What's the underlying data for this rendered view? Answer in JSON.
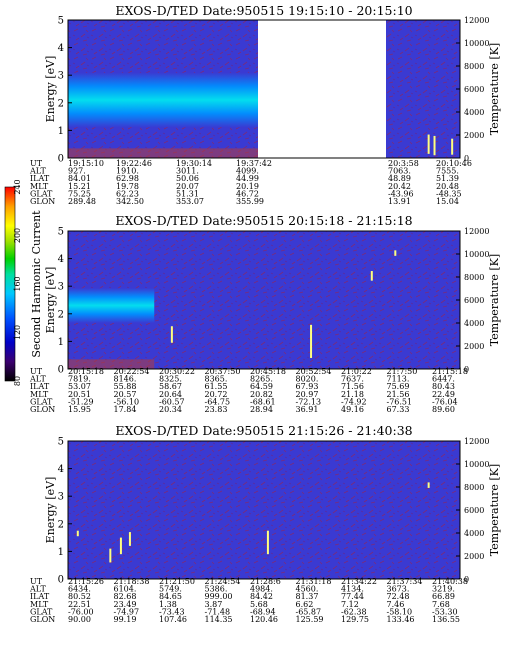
{
  "chart_data": [
    {
      "type": "heatmap",
      "title": "EXOS-D/TED   Date:950515   19:15:10 - 20:15:10",
      "ylabel": "Energy [eV]",
      "ylabel_right": "Temperature [K]",
      "ylim": [
        0,
        5
      ],
      "yticks": [
        "0",
        "1",
        "2",
        "3",
        "4",
        "5"
      ],
      "ylim_right": [
        0,
        12000
      ],
      "yticks_right": [
        "0",
        "2000",
        "4000",
        "6000",
        "8000",
        "10000",
        "12000"
      ],
      "data_gap": true,
      "band": {
        "x_start": 0.0,
        "x_end": 0.5,
        "center_eV": 2.1,
        "halfwidth_eV": 0.55
      },
      "spikes": [
        {
          "x": 0.92,
          "y0": 0.15,
          "y1": 0.85
        },
        {
          "x": 0.935,
          "y0": 0.1,
          "y1": 0.8
        },
        {
          "x": 0.98,
          "y0": 0.12,
          "y1": 0.7
        }
      ],
      "rows": [
        {
          "name": "UT",
          "values": [
            "19:15:10",
            "19:22:46",
            "19:30:14",
            "19:37:42",
            "",
            "20:3:58",
            "20:10:46"
          ]
        },
        {
          "name": "ALT",
          "values": [
            "927.",
            "1910.",
            "3011.",
            "4099.",
            "",
            "7063.",
            "7555."
          ]
        },
        {
          "name": "ILAT",
          "values": [
            "84.01",
            "62.98",
            "50.06",
            "44.99",
            "",
            "48.89",
            "51.39"
          ]
        },
        {
          "name": "MLT",
          "values": [
            "15.21",
            "19.78",
            "20.07",
            "20.19",
            "",
            "20.42",
            "20.48"
          ]
        },
        {
          "name": "GLAT",
          "values": [
            "75.25",
            "62.23",
            "51.31",
            "46.72",
            "",
            "-43.96",
            "-48.35"
          ]
        },
        {
          "name": "GLON",
          "values": [
            "289.48",
            "342.50",
            "353.07",
            "355.99",
            "",
            "13.91",
            "15.04"
          ]
        }
      ]
    },
    {
      "type": "heatmap",
      "title": "EXOS-D/TED   Date:950515   20:15:18 - 21:15:18",
      "ylabel": "Energy [eV]",
      "ylabel_right": "Temperature [K]",
      "ylim": [
        0,
        5
      ],
      "yticks": [
        "0",
        "1",
        "2",
        "3",
        "4",
        "5"
      ],
      "ylim_right": [
        0,
        12000
      ],
      "yticks_right": [
        "0",
        "2000",
        "4000",
        "6000",
        "8000",
        "10000",
        "12000"
      ],
      "data_gap": false,
      "band": {
        "x_start": 0.0,
        "x_end": 0.22,
        "center_eV": 2.3,
        "halfwidth_eV": 0.35
      },
      "spikes": [
        {
          "x": 0.265,
          "y0": 0.95,
          "y1": 1.55
        },
        {
          "x": 0.62,
          "y0": 0.4,
          "y1": 1.6
        },
        {
          "x": 0.775,
          "y0": 3.2,
          "y1": 3.55
        },
        {
          "x": 0.835,
          "y0": 4.1,
          "y1": 4.3
        }
      ],
      "rows": [
        {
          "name": "UT",
          "values": [
            "20:15:18",
            "20:22:54",
            "20:30:22",
            "20:37:50",
            "20:45:18",
            "20:52:54",
            "21:0:22",
            "21:7:50",
            "21:15:18"
          ]
        },
        {
          "name": "ALT",
          "values": [
            "7819.",
            "8146.",
            "8325.",
            "8365.",
            "8265.",
            "8020.",
            "7637.",
            "7113.",
            "6447."
          ]
        },
        {
          "name": "ILAT",
          "values": [
            "53.07",
            "55.88",
            "58.67",
            "61.55",
            "64.59",
            "67.93",
            "71.56",
            "75.69",
            "80.43"
          ]
        },
        {
          "name": "MLT",
          "values": [
            "20.51",
            "20.57",
            "20.64",
            "20.72",
            "20.82",
            "20.97",
            "21.18",
            "21.56",
            "22.49"
          ]
        },
        {
          "name": "GLAT",
          "values": [
            "-51.29",
            "-56.10",
            "-60.57",
            "-64.75",
            "-68.61",
            "-72.13",
            "-74.92",
            "-76.51",
            "-76.04"
          ]
        },
        {
          "name": "GLON",
          "values": [
            "15.95",
            "17.84",
            "20.34",
            "23.83",
            "28.94",
            "36.91",
            "49.16",
            "67.33",
            "89.60"
          ]
        }
      ]
    },
    {
      "type": "heatmap",
      "title": "EXOS-D/TED   Date:950515   21:15:26 - 21:40:38",
      "ylabel": "Energy [eV]",
      "ylabel_right": "Temperature [K]",
      "ylim": [
        0,
        5
      ],
      "yticks": [
        "0",
        "1",
        "2",
        "3",
        "4",
        "5"
      ],
      "ylim_right": [
        0,
        12000
      ],
      "yticks_right": [
        "0",
        "2000",
        "4000",
        "6000",
        "8000",
        "10000",
        "12000"
      ],
      "data_gap": false,
      "band": null,
      "spikes": [
        {
          "x": 0.025,
          "y0": 1.55,
          "y1": 1.75
        },
        {
          "x": 0.108,
          "y0": 0.6,
          "y1": 1.1
        },
        {
          "x": 0.135,
          "y0": 0.9,
          "y1": 1.5
        },
        {
          "x": 0.158,
          "y0": 1.2,
          "y1": 1.7
        },
        {
          "x": 0.51,
          "y0": 0.9,
          "y1": 1.75
        },
        {
          "x": 0.92,
          "y0": 3.3,
          "y1": 3.5
        }
      ],
      "rows": [
        {
          "name": "UT",
          "values": [
            "21:15:26",
            "21:18:38",
            "21:21:50",
            "21:24:54",
            "21:28:6",
            "21:31:18",
            "21:34:22",
            "21:37:34",
            "21:40:38"
          ]
        },
        {
          "name": "ALT",
          "values": [
            "6434.",
            "6104.",
            "5749.",
            "5386.",
            "4984.",
            "4560.",
            "4134.",
            "3673.",
            "3219."
          ]
        },
        {
          "name": "ILAT",
          "values": [
            "80.52",
            "82.68",
            "84.65",
            "999.00",
            "84.42",
            "81.37",
            "77.44",
            "72.48",
            "66.89"
          ]
        },
        {
          "name": "MLT",
          "values": [
            "22.51",
            "23.49",
            "1.38",
            "3.87",
            "5.68",
            "6.62",
            "7.12",
            "7.46",
            "7.68"
          ]
        },
        {
          "name": "GLAT",
          "values": [
            "-76.00",
            "-74.97",
            "-73.43",
            "-71.48",
            "-68.94",
            "-65.87",
            "-62.38",
            "-58.10",
            "-53.30"
          ]
        },
        {
          "name": "GLON",
          "values": [
            "90.00",
            "99.19",
            "107.46",
            "114.35",
            "120.46",
            "125.59",
            "129.75",
            "133.46",
            "136.55"
          ]
        }
      ]
    }
  ],
  "colorbar": {
    "label": "Second Harmonic Current",
    "ticks": [
      "80",
      "120",
      "160",
      "200",
      "240"
    ],
    "range": [
      80,
      240
    ],
    "colors": [
      "#000000",
      "#3c0070",
      "#0000c8",
      "#0050ff",
      "#00c8ff",
      "#00e0a0",
      "#00d000",
      "#a0e000",
      "#ffff00",
      "#ffa000",
      "#ff0000"
    ]
  },
  "colors": {
    "background": "#3a3ad2",
    "noise": "#7a2a7a",
    "band_core": "#00e6f0",
    "band_edge": "#0090ff",
    "spike": "#ffff80",
    "cold_edge": "#b43c3c"
  }
}
